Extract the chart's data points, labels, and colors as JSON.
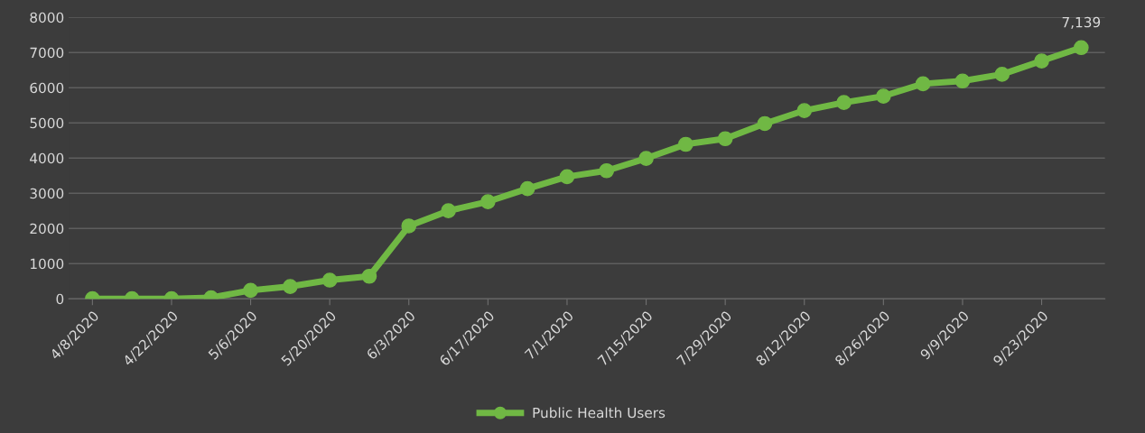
{
  "chart_data": {
    "type": "line",
    "categories": [
      "4/8/2020",
      null,
      "4/22/2020",
      null,
      "5/6/2020",
      null,
      "5/20/2020",
      null,
      "6/3/2020",
      null,
      "6/17/2020",
      null,
      "7/1/2020",
      null,
      "7/15/2020",
      null,
      "7/29/2020",
      null,
      "8/12/2020",
      null,
      "8/26/2020",
      null,
      "9/9/2020",
      null,
      "9/23/2020",
      null
    ],
    "series": [
      {
        "name": "Public Health Users",
        "color": "#70b844",
        "values": [
          0,
          0,
          0,
          30,
          240,
          350,
          530,
          640,
          2070,
          2500,
          2760,
          3130,
          3470,
          3640,
          3990,
          4390,
          4550,
          4980,
          5350,
          5580,
          5760,
          6110,
          6190,
          6380,
          6760,
          7139
        ],
        "value_labels": [
          null,
          null,
          null,
          null,
          null,
          null,
          null,
          null,
          null,
          null,
          null,
          null,
          null,
          null,
          null,
          null,
          null,
          null,
          null,
          null,
          null,
          null,
          null,
          null,
          null,
          "7,139"
        ]
      }
    ],
    "ylim": [
      0,
      8000
    ],
    "yticks": [
      0,
      1000,
      2000,
      3000,
      4000,
      5000,
      6000,
      7000,
      8000
    ],
    "grid": "y",
    "legend": "bottom",
    "marker": "circle",
    "line_style": "solid"
  }
}
